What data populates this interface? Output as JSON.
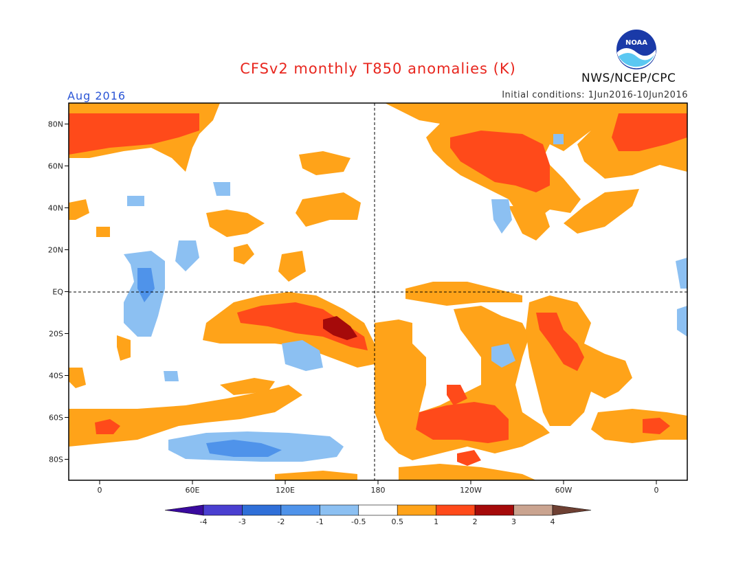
{
  "title": "CFSv2 monthly T850 anomalies (K)",
  "valid_month": "Aug 2016",
  "initial_conditions": "Initial conditions: 1Jun2016-10Jun2016",
  "agency": "NWS/NCEP/CPC",
  "logo": {
    "icon": "noaa-logo-icon",
    "text": "NOAA"
  },
  "map": {
    "projection": "equirectangular",
    "lon_range": [
      -20,
      380
    ],
    "lat_range": [
      -90,
      90
    ],
    "lat_ticks": [
      "80N",
      "60N",
      "40N",
      "20N",
      "EQ",
      "20S",
      "40S",
      "60S",
      "80S"
    ],
    "lon_ticks": [
      "0",
      "60E",
      "120E",
      "180",
      "120W",
      "60W",
      "0"
    ],
    "reference_lines": [
      "EQ",
      "180"
    ]
  },
  "colorbar": {
    "labels": [
      "-4",
      "-3",
      "-2",
      "-1",
      "-0.5",
      "0.5",
      "1",
      "2",
      "3",
      "4"
    ],
    "colors": [
      "#3a0a9e",
      "#4a3fd0",
      "#2f6fd8",
      "#4f93ea",
      "#8cc0f2",
      "#ffffff",
      "#ffa319",
      "#ff4a1a",
      "#a50a0a",
      "#caa490",
      "#6e4033"
    ]
  },
  "colors": {
    "weak_warm": "#ffa319",
    "warm": "#ff4a1a",
    "strong_warm": "#a50a0a",
    "weak_cold": "#8cc0f2",
    "cold": "#4f93ea",
    "title": "#e8261e",
    "date": "#2a55d6"
  }
}
